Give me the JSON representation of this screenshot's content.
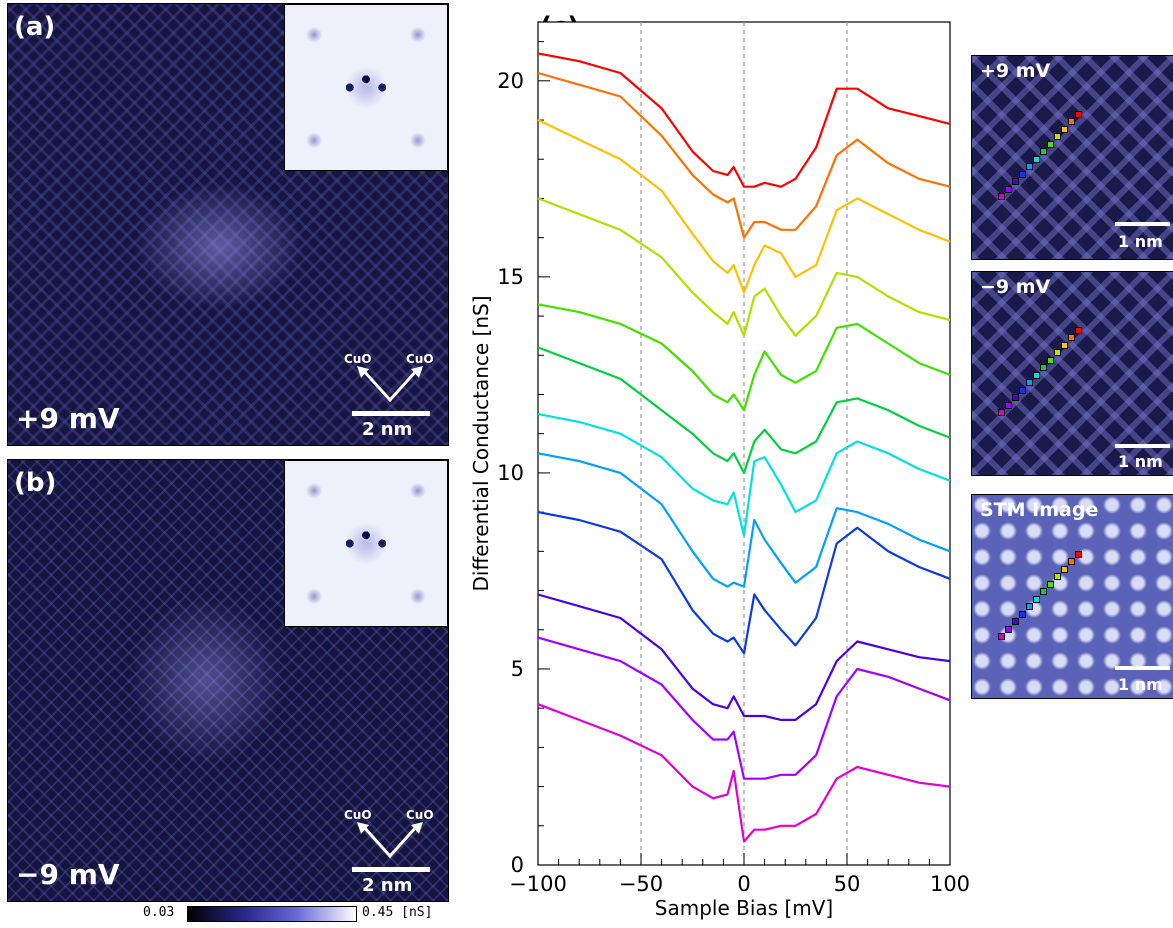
{
  "panel_a": {
    "label": "(a)",
    "bias": "+9 mV",
    "scale": "2 nm",
    "dir_left": "CuO",
    "dir_right": "CuO"
  },
  "panel_b": {
    "label": "(b)",
    "bias": "−9 mV",
    "scale": "2 nm",
    "dir_left": "CuO",
    "dir_right": "CuO"
  },
  "panel_c": {
    "label": "(c)"
  },
  "side_maps": [
    {
      "label": "+9 mV",
      "scale": "1 nm"
    },
    {
      "label": "−9 mV",
      "scale": "1 nm"
    },
    {
      "label": "STM Image",
      "scale": "1 nm"
    }
  ],
  "colorbar": {
    "min": "0.03",
    "max": "0.45 [nS]"
  },
  "marker_colors": [
    "#d400d4",
    "#a000ff",
    "#4a00e0",
    "#0a3ae0",
    "#00a0ff",
    "#00e0e0",
    "#00d050",
    "#50e000",
    "#c0e000",
    "#ffc000",
    "#ff7000",
    "#ff0000"
  ],
  "chart_data": {
    "type": "line",
    "xlabel": "Sample Bias [mV]",
    "ylabel": "Differential Conductance [nS]",
    "xlim": [
      -100,
      100
    ],
    "ylim": [
      0,
      21.5
    ],
    "xticks": [
      "−100",
      "−50",
      "0",
      "50",
      "100"
    ],
    "xtick_values": [
      -100,
      -50,
      0,
      50,
      100
    ],
    "yticks": [
      "0",
      "5",
      "10",
      "15",
      "20"
    ],
    "ytick_values": [
      0,
      5,
      10,
      15,
      20
    ],
    "vlines": [
      -50,
      0,
      50
    ],
    "x": [
      -100,
      -80,
      -60,
      -40,
      -25,
      -15,
      -8,
      -5,
      0,
      5,
      10,
      18,
      25,
      35,
      45,
      55,
      70,
      85,
      100
    ],
    "series": [
      {
        "color": "#ff0000",
        "values": [
          20.7,
          20.5,
          20.2,
          19.3,
          18.2,
          17.7,
          17.6,
          17.8,
          17.3,
          17.3,
          17.4,
          17.3,
          17.5,
          18.3,
          19.8,
          19.8,
          19.3,
          19.1,
          18.9
        ]
      },
      {
        "color": "#ff7000",
        "values": [
          20.2,
          19.9,
          19.6,
          18.6,
          17.6,
          17.1,
          16.9,
          17.0,
          16.0,
          16.4,
          16.4,
          16.2,
          16.2,
          16.8,
          18.1,
          18.5,
          17.9,
          17.5,
          17.3
        ]
      },
      {
        "color": "#ffc000",
        "values": [
          19.0,
          18.5,
          18.0,
          17.2,
          16.1,
          15.4,
          15.1,
          15.3,
          14.6,
          15.3,
          15.8,
          15.6,
          15.0,
          15.3,
          16.7,
          17.0,
          16.6,
          16.2,
          15.9
        ]
      },
      {
        "color": "#b0e000",
        "values": [
          17.0,
          16.6,
          16.2,
          15.5,
          14.6,
          14.1,
          13.8,
          14.1,
          13.5,
          14.5,
          14.7,
          14.0,
          13.5,
          14.0,
          15.1,
          15.0,
          14.5,
          14.1,
          13.9
        ]
      },
      {
        "color": "#40e000",
        "values": [
          14.3,
          14.1,
          13.8,
          13.3,
          12.6,
          12.0,
          11.8,
          12.0,
          11.6,
          12.5,
          13.1,
          12.5,
          12.3,
          12.6,
          13.7,
          13.8,
          13.3,
          12.8,
          12.5
        ]
      },
      {
        "color": "#00d040",
        "values": [
          13.2,
          12.8,
          12.4,
          11.6,
          11.0,
          10.5,
          10.3,
          10.5,
          10.0,
          10.8,
          11.1,
          10.6,
          10.5,
          10.8,
          11.8,
          11.9,
          11.6,
          11.2,
          10.9
        ]
      },
      {
        "color": "#00e0e0",
        "values": [
          11.5,
          11.3,
          11.0,
          10.4,
          9.6,
          9.3,
          9.2,
          9.5,
          8.4,
          10.3,
          10.4,
          9.7,
          9.0,
          9.3,
          10.5,
          10.8,
          10.5,
          10.1,
          9.8
        ]
      },
      {
        "color": "#00a0ff",
        "values": [
          10.5,
          10.3,
          10.0,
          9.2,
          8.0,
          7.3,
          7.1,
          7.2,
          7.1,
          8.8,
          8.3,
          7.7,
          7.2,
          7.6,
          9.1,
          9.0,
          8.7,
          8.3,
          8.0
        ]
      },
      {
        "color": "#0a3ae0",
        "values": [
          9.0,
          8.8,
          8.5,
          7.8,
          6.5,
          5.9,
          5.7,
          5.8,
          5.4,
          6.9,
          6.5,
          6.0,
          5.6,
          6.3,
          8.2,
          8.6,
          8.0,
          7.6,
          7.3
        ]
      },
      {
        "color": "#4a00e0",
        "values": [
          6.9,
          6.6,
          6.3,
          5.5,
          4.5,
          4.1,
          4.0,
          4.3,
          3.8,
          3.8,
          3.8,
          3.7,
          3.7,
          4.1,
          5.2,
          5.7,
          5.5,
          5.3,
          5.2
        ]
      },
      {
        "color": "#a000ff",
        "values": [
          5.8,
          5.5,
          5.2,
          4.6,
          3.7,
          3.2,
          3.2,
          3.4,
          2.2,
          2.2,
          2.2,
          2.3,
          2.3,
          2.8,
          4.3,
          5.0,
          4.8,
          4.5,
          4.2
        ]
      },
      {
        "color": "#e000d0",
        "values": [
          4.1,
          3.7,
          3.3,
          2.8,
          2.0,
          1.7,
          1.8,
          2.4,
          0.6,
          0.9,
          0.9,
          1.0,
          1.0,
          1.3,
          2.2,
          2.5,
          2.3,
          2.1,
          2.0
        ]
      }
    ]
  }
}
